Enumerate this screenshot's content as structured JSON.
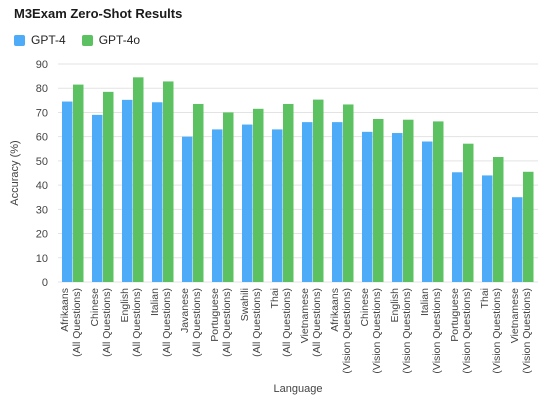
{
  "chart_data": {
    "type": "bar",
    "title": "M3Exam Zero-Shot Results",
    "xlabel": "Language",
    "ylabel": "Accuracy (%)",
    "ylim": [
      0,
      90
    ],
    "yticks": [
      0,
      10,
      20,
      30,
      40,
      50,
      60,
      70,
      80,
      90
    ],
    "grid": true,
    "legend_position": "top-left",
    "categories": [
      [
        "Afrikaans",
        "(All Questions)"
      ],
      [
        "Chinese",
        "(All Questions)"
      ],
      [
        "English",
        "(All Questions)"
      ],
      [
        "Italian",
        "(All Questions)"
      ],
      [
        "Javanese",
        "(All Questions)"
      ],
      [
        "Portuguese",
        "(All Questions)"
      ],
      [
        "Swahili",
        "(All Questions)"
      ],
      [
        "Thai",
        "(All Questions)"
      ],
      [
        "Vietnamese",
        "(All Questions)"
      ],
      [
        "Afrikaans",
        "(Vision Questions)"
      ],
      [
        "Chinese",
        "(Vision Questions)"
      ],
      [
        "English",
        "(Vision Questions)"
      ],
      [
        "Italian",
        "(Vision Questions)"
      ],
      [
        "Portuguese",
        "(Vision Questions)"
      ],
      [
        "Thai",
        "(Vision Questions)"
      ],
      [
        "Vietnamese",
        "(Vision Questions)"
      ]
    ],
    "series": [
      {
        "name": "GPT-4",
        "color": "#4dabf7",
        "values": [
          74.5,
          69,
          75.2,
          74.2,
          60,
          63,
          65,
          63,
          66,
          66,
          62,
          61.5,
          58,
          45.3,
          44,
          35
        ]
      },
      {
        "name": "GPT-4o",
        "color": "#5cc160",
        "values": [
          81.5,
          78.5,
          84.5,
          82.8,
          73.5,
          70,
          71.5,
          73.5,
          75.3,
          73.3,
          67.3,
          67,
          66.3,
          57.1,
          51.6,
          45.5
        ]
      }
    ]
  }
}
